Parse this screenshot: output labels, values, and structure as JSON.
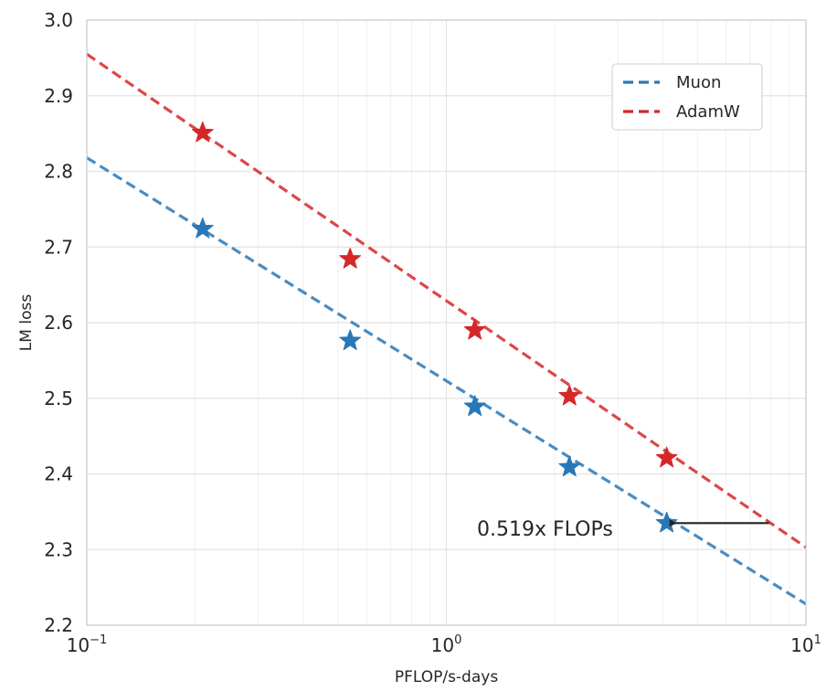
{
  "chart_data": {
    "type": "line",
    "title": "",
    "xlabel": "PFLOP/s-days",
    "ylabel": "LM loss",
    "xscale": "log",
    "xlim": [
      0.1,
      10
    ],
    "ylim": [
      2.2,
      3.0
    ],
    "x_ticks": [
      {
        "value": 0.1,
        "base": "10",
        "exp": "−1"
      },
      {
        "value": 1,
        "base": "10",
        "exp": "0"
      },
      {
        "value": 10,
        "base": "10",
        "exp": "1"
      }
    ],
    "y_ticks": [
      "2.2",
      "2.3",
      "2.4",
      "2.5",
      "2.6",
      "2.7",
      "2.8",
      "2.9",
      "3.0"
    ],
    "grid": true,
    "legend_position": "top-right",
    "series": [
      {
        "name": "Muon",
        "color": "#2878b8",
        "line_style": "dashed",
        "fit_line": {
          "x": [
            0.1,
            10
          ],
          "y": [
            2.818,
            2.228
          ]
        },
        "points": {
          "x": [
            0.21,
            0.54,
            1.2,
            2.2,
            4.1
          ],
          "y": [
            2.724,
            2.576,
            2.489,
            2.409,
            2.335
          ]
        }
      },
      {
        "name": "AdamW",
        "color": "#d62728",
        "line_style": "dashed",
        "fit_line": {
          "x": [
            0.1,
            10
          ],
          "y": [
            2.955,
            2.303
          ]
        },
        "points": {
          "x": [
            0.21,
            0.54,
            1.2,
            2.2,
            4.1
          ],
          "y": [
            2.851,
            2.684,
            2.59,
            2.503,
            2.421
          ]
        }
      }
    ],
    "annotation": {
      "text": "0.519x FLOPs",
      "arrow_from": {
        "x": 7.9,
        "y": 2.335
      },
      "arrow_to": {
        "x": 4.1,
        "y": 2.335
      }
    }
  }
}
